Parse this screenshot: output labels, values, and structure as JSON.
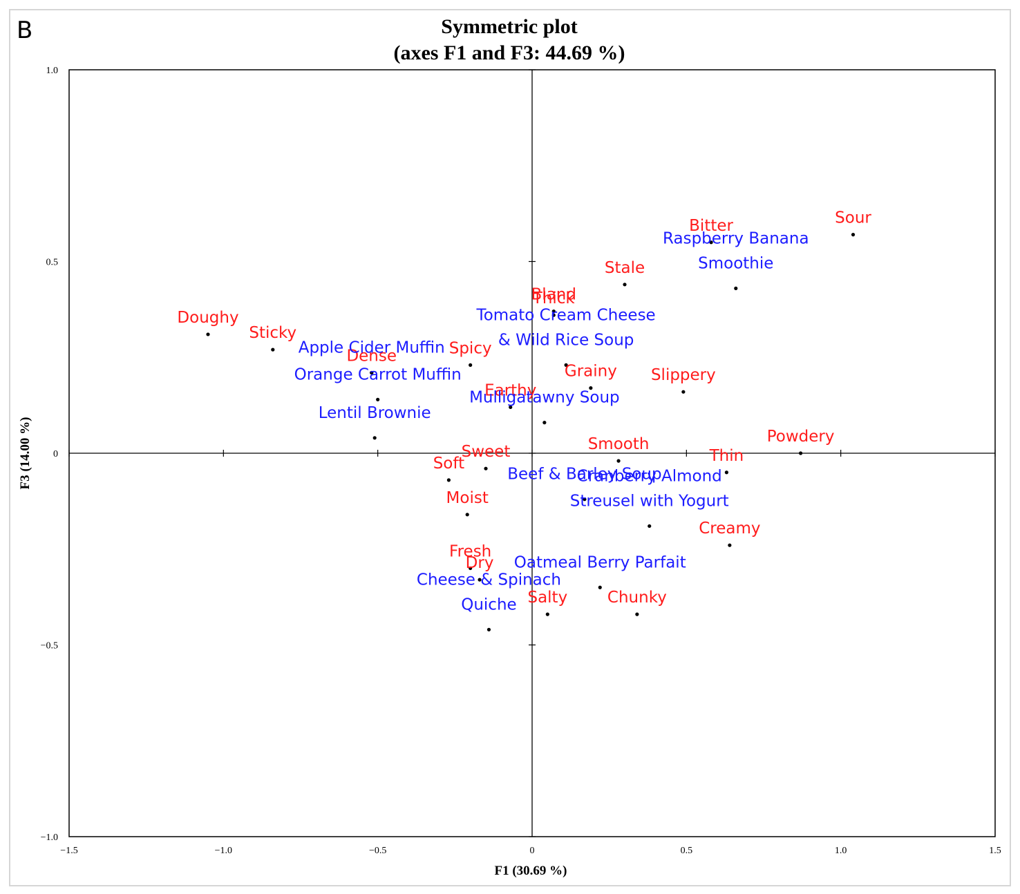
{
  "panel_letter": "B",
  "chart_data": {
    "type": "scatter",
    "title": [
      "Symmetric plot",
      "(axes F1 and F3: 44.69 %)"
    ],
    "xlabel": "F1 (30.69 %)",
    "ylabel": "F3 (14.00 %)",
    "xlim": [
      -1.5,
      1.5
    ],
    "ylim": [
      -1.0,
      1.0
    ],
    "xticks": [
      -1.5,
      -1.0,
      -0.5,
      0,
      0.5,
      1.0,
      1.5
    ],
    "xtick_labels": [
      "−1.5",
      "−1.0",
      "−0.5",
      "0",
      "0.5",
      "1.0",
      "1.5"
    ],
    "yticks": [
      1.0,
      0.5,
      0,
      -0.5,
      -1.0
    ],
    "ytick_labels": [
      "1.0",
      "0.5",
      "0",
      "−0.5",
      "−1.0"
    ],
    "colors": {
      "attributes": "#ff1c1c",
      "products": "#1c1cff",
      "points": "#000000",
      "axes": "#000000"
    },
    "series": [
      {
        "name": "Attributes",
        "color": "#ff1c1c",
        "points": [
          {
            "label": "Sour",
            "x": 1.04,
            "y": 0.57
          },
          {
            "label": "Bitter",
            "x": 0.58,
            "y": 0.55
          },
          {
            "label": "Stale",
            "x": 0.3,
            "y": 0.44
          },
          {
            "label": "Bland",
            "x": 0.07,
            "y": 0.37
          },
          {
            "label": "Thick",
            "x": 0.07,
            "y": 0.36
          },
          {
            "label": "Doughy",
            "x": -1.05,
            "y": 0.31
          },
          {
            "label": "Sticky",
            "x": -0.84,
            "y": 0.27
          },
          {
            "label": "Dense",
            "x": -0.52,
            "y": 0.21
          },
          {
            "label": "Spicy",
            "x": -0.2,
            "y": 0.23
          },
          {
            "label": "Grainy",
            "x": 0.19,
            "y": 0.17
          },
          {
            "label": "Slippery",
            "x": 0.49,
            "y": 0.16
          },
          {
            "label": "Earthy",
            "x": -0.07,
            "y": 0.12
          },
          {
            "label": "Powdery",
            "x": 0.87,
            "y": 0.0
          },
          {
            "label": "Smooth",
            "x": 0.28,
            "y": -0.02
          },
          {
            "label": "Thin",
            "x": 0.63,
            "y": -0.05
          },
          {
            "label": "Sweet",
            "x": -0.15,
            "y": -0.04
          },
          {
            "label": "Soft",
            "x": -0.27,
            "y": -0.07
          },
          {
            "label": "Moist",
            "x": -0.21,
            "y": -0.16
          },
          {
            "label": "Creamy",
            "x": 0.64,
            "y": -0.24
          },
          {
            "label": "Fresh",
            "x": -0.2,
            "y": -0.3
          },
          {
            "label": "Dry",
            "x": -0.17,
            "y": -0.33
          },
          {
            "label": "Salty",
            "x": 0.05,
            "y": -0.42
          },
          {
            "label": "Chunky",
            "x": 0.34,
            "y": -0.42
          }
        ]
      },
      {
        "name": "Products",
        "color": "#1c1cff",
        "points": [
          {
            "label": [
              "Raspberry  Banana",
              "Smoothie"
            ],
            "x": 0.66,
            "y": 0.43
          },
          {
            "label": [
              "Tomato Cream Cheese",
              "& Wild Rice Soup"
            ],
            "x": 0.11,
            "y": 0.23
          },
          {
            "label": [
              "Apple Cider Muffin"
            ],
            "x": -0.52,
            "y": 0.21
          },
          {
            "label": [
              "Orange Carrot Muffin"
            ],
            "x": -0.5,
            "y": 0.14
          },
          {
            "label": [
              "Mulligatawny Soup"
            ],
            "x": 0.04,
            "y": 0.08
          },
          {
            "label": [
              "Lentil Brownie"
            ],
            "x": -0.51,
            "y": 0.04
          },
          {
            "label": [
              "Beef & Barley Soup"
            ],
            "x": 0.17,
            "y": -0.12
          },
          {
            "label": [
              "Cranberry  Almond",
              "Streusel with Yogurt"
            ],
            "x": 0.38,
            "y": -0.19
          },
          {
            "label": [
              "Oatmeal  Berry  Parfait"
            ],
            "x": 0.22,
            "y": -0.35
          },
          {
            "label": [
              "Cheese & Spinach",
              "Quiche"
            ],
            "x": -0.14,
            "y": -0.46
          }
        ]
      }
    ]
  }
}
